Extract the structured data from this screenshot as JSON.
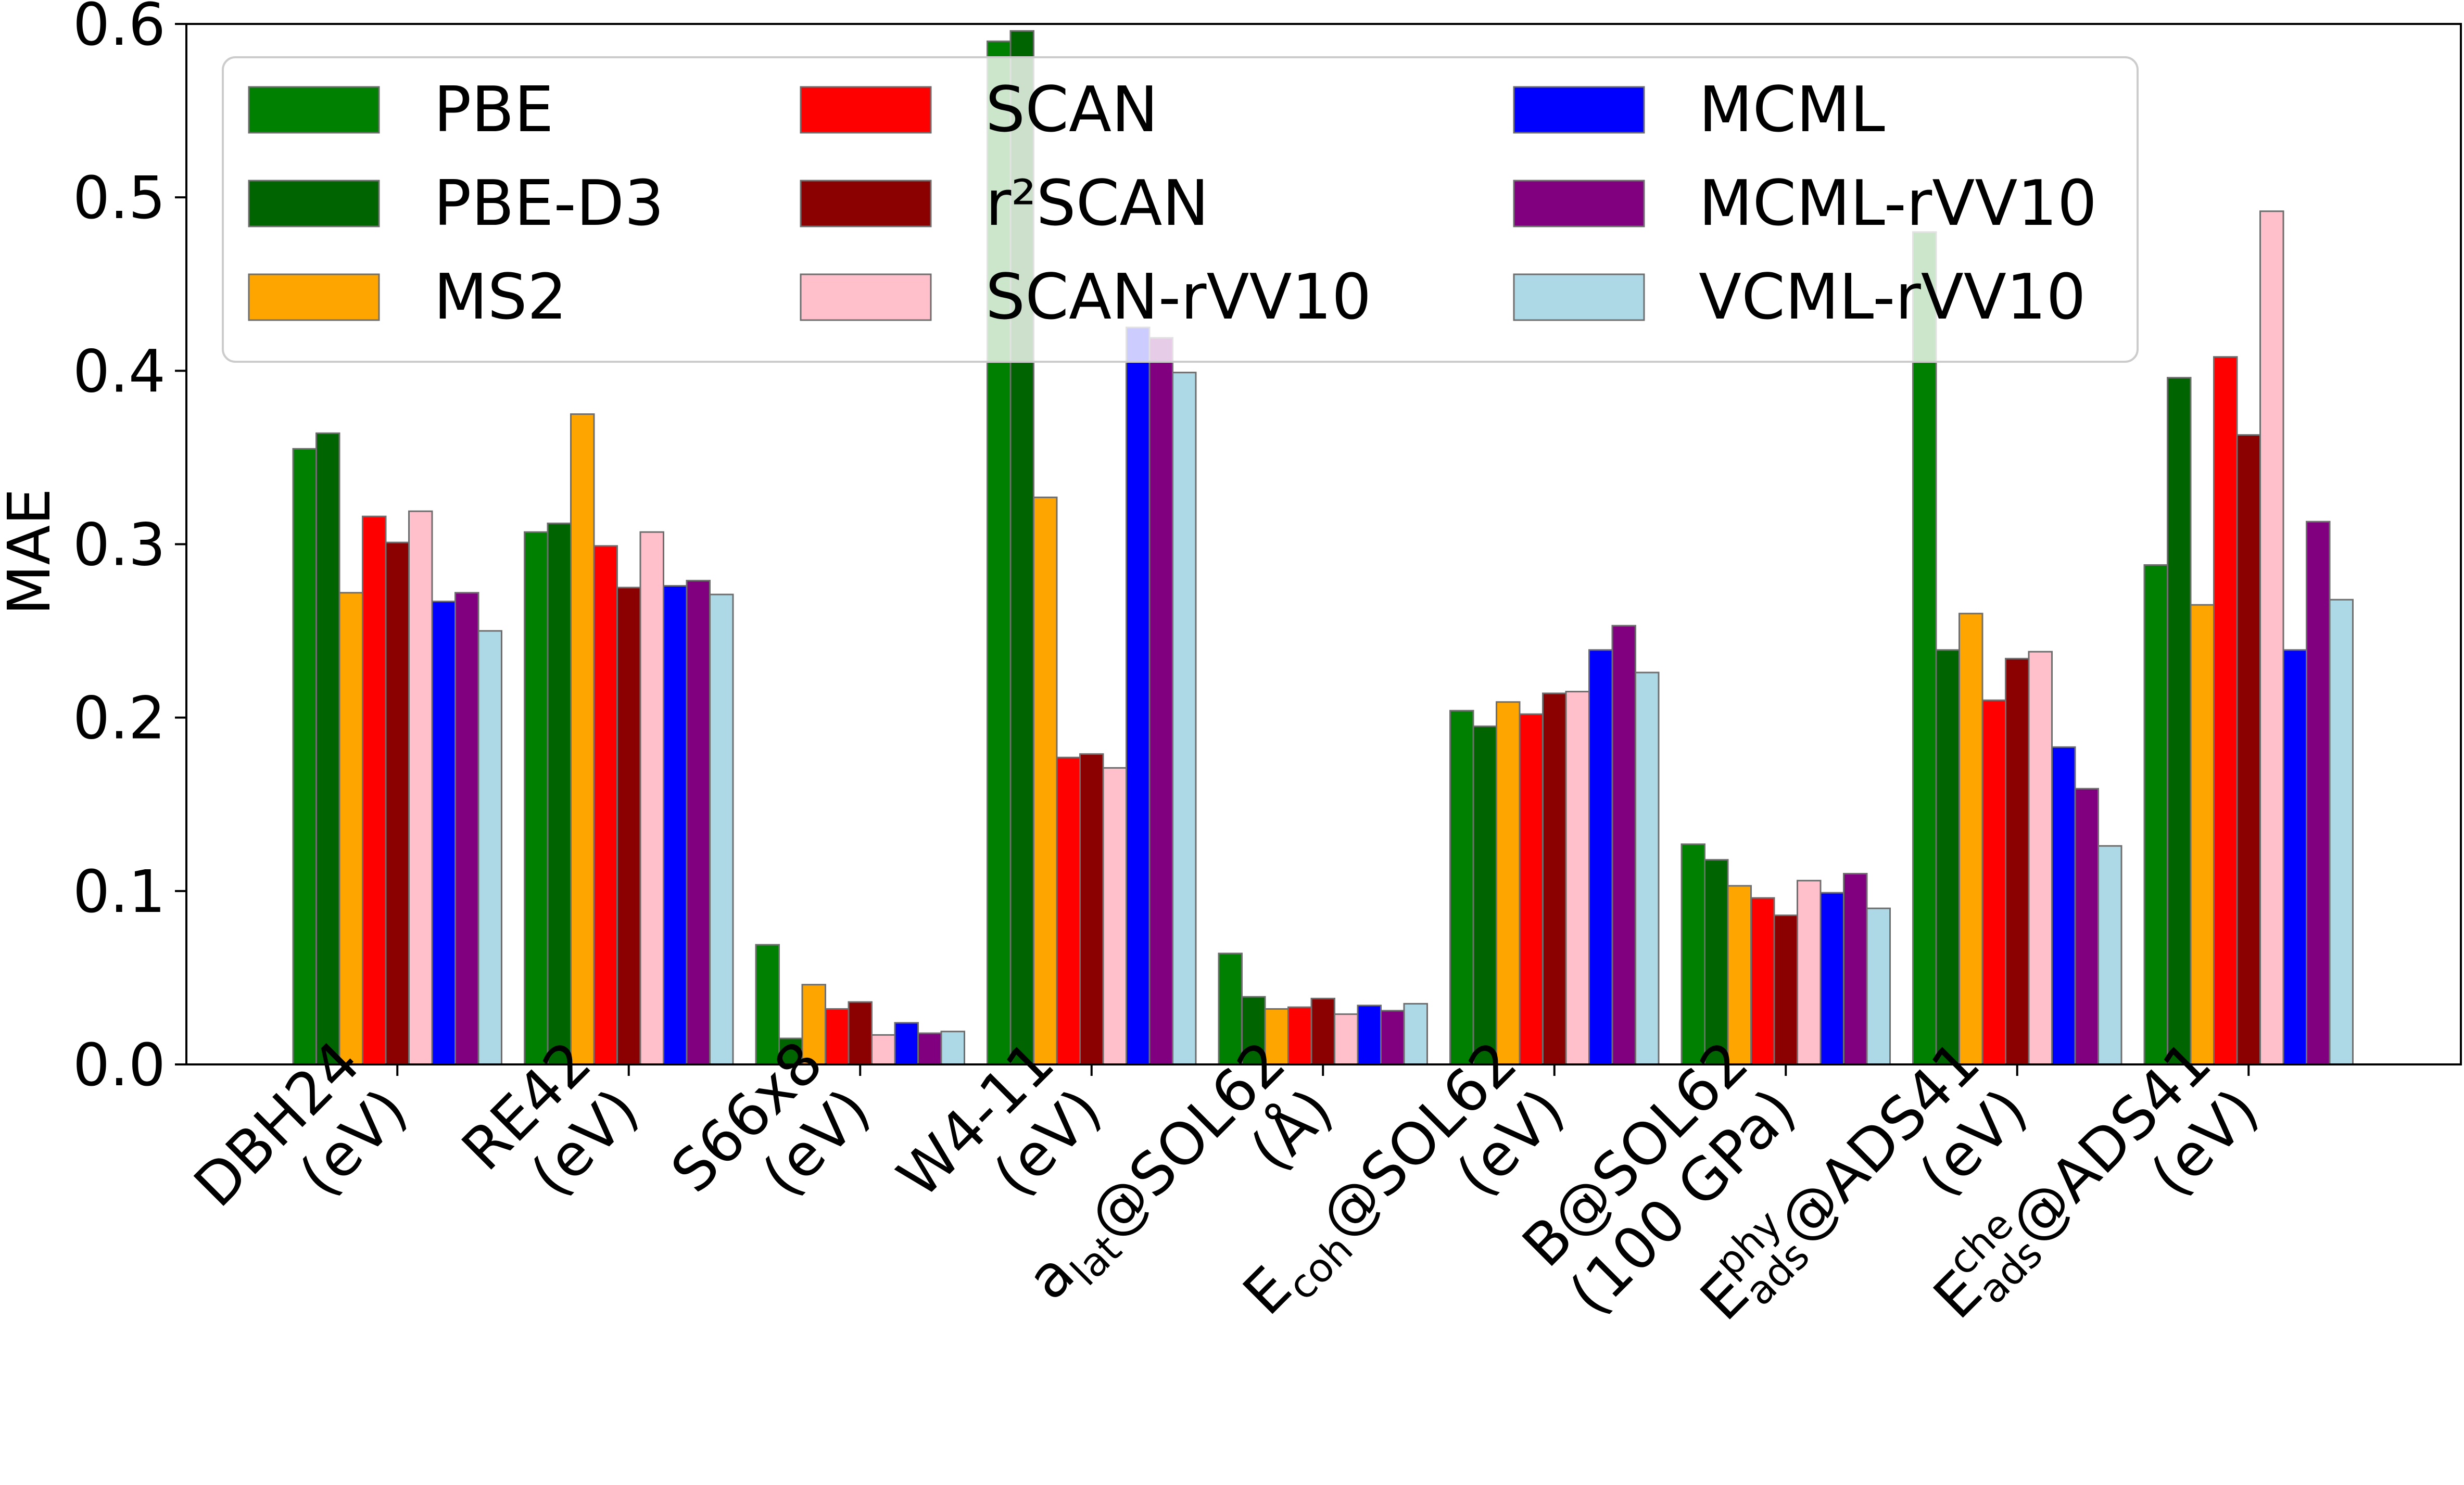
{
  "chart_data": {
    "type": "bar",
    "title": "",
    "xlabel": "",
    "ylabel": "MAE",
    "ylim": [
      0,
      0.6
    ],
    "yticks": [
      "0.0",
      "0.1",
      "0.2",
      "0.3",
      "0.4",
      "0.5",
      "0.6"
    ],
    "grid": false,
    "legend_position": "top",
    "categories": [
      {
        "main": "DBH24",
        "unit": "(eV)"
      },
      {
        "main": "RE42",
        "unit": "(eV)"
      },
      {
        "main": "S66x8",
        "unit": "(eV)"
      },
      {
        "main": "W4-11",
        "unit": "(eV)"
      },
      {
        "pre": "a",
        "sub": "lat",
        "post": "@SOL62",
        "unit": "(Å)"
      },
      {
        "pre": "E",
        "sub": "coh",
        "post": "@SOL62",
        "unit": "(eV)"
      },
      {
        "main": "B@SOL62",
        "unit": "(100 GPa)"
      },
      {
        "pre": "E",
        "sub": "ads",
        "sup": "phy",
        "post": "@ADS41",
        "unit": "(eV)"
      },
      {
        "pre": "E",
        "sub": "ads",
        "sup": "che",
        "post": "@ADS41",
        "unit": "(eV)"
      }
    ],
    "series": [
      {
        "name": "PBE",
        "color": "#008000",
        "values": [
          0.355,
          0.307,
          0.069,
          0.59,
          0.064,
          0.204,
          0.127,
          0.48,
          0.288
        ]
      },
      {
        "name": "PBE-D3",
        "color": "#006400",
        "values": [
          0.364,
          0.312,
          0.015,
          0.596,
          0.039,
          0.195,
          0.118,
          0.239,
          0.396
        ]
      },
      {
        "name": "MS2",
        "color": "#FFA500",
        "values": [
          0.272,
          0.375,
          0.046,
          0.327,
          0.032,
          0.209,
          0.103,
          0.26,
          0.265
        ]
      },
      {
        "name": "SCAN",
        "color": "#FF0000",
        "values": [
          0.316,
          0.299,
          0.032,
          0.177,
          0.033,
          0.202,
          0.096,
          0.21,
          0.408
        ]
      },
      {
        "name": "r²SCAN",
        "color": "#8B0000",
        "values": [
          0.301,
          0.275,
          0.036,
          0.179,
          0.038,
          0.214,
          0.086,
          0.234,
          0.363
        ]
      },
      {
        "name": "SCAN-rVV10",
        "color": "#FFC0CB",
        "values": [
          0.319,
          0.307,
          0.017,
          0.171,
          0.029,
          0.215,
          0.106,
          0.238,
          0.492
        ]
      },
      {
        "name": "MCML",
        "color": "#0000FF",
        "values": [
          0.267,
          0.276,
          0.024,
          0.425,
          0.034,
          0.239,
          0.099,
          0.183,
          0.239
        ]
      },
      {
        "name": "MCML-rVV10",
        "color": "#800080",
        "values": [
          0.272,
          0.279,
          0.018,
          0.419,
          0.031,
          0.253,
          0.11,
          0.159,
          0.313
        ]
      },
      {
        "name": "VCML-rVV10",
        "color": "#ADD8E6",
        "values": [
          0.25,
          0.271,
          0.019,
          0.399,
          0.035,
          0.226,
          0.09,
          0.126,
          0.268
        ]
      }
    ]
  }
}
